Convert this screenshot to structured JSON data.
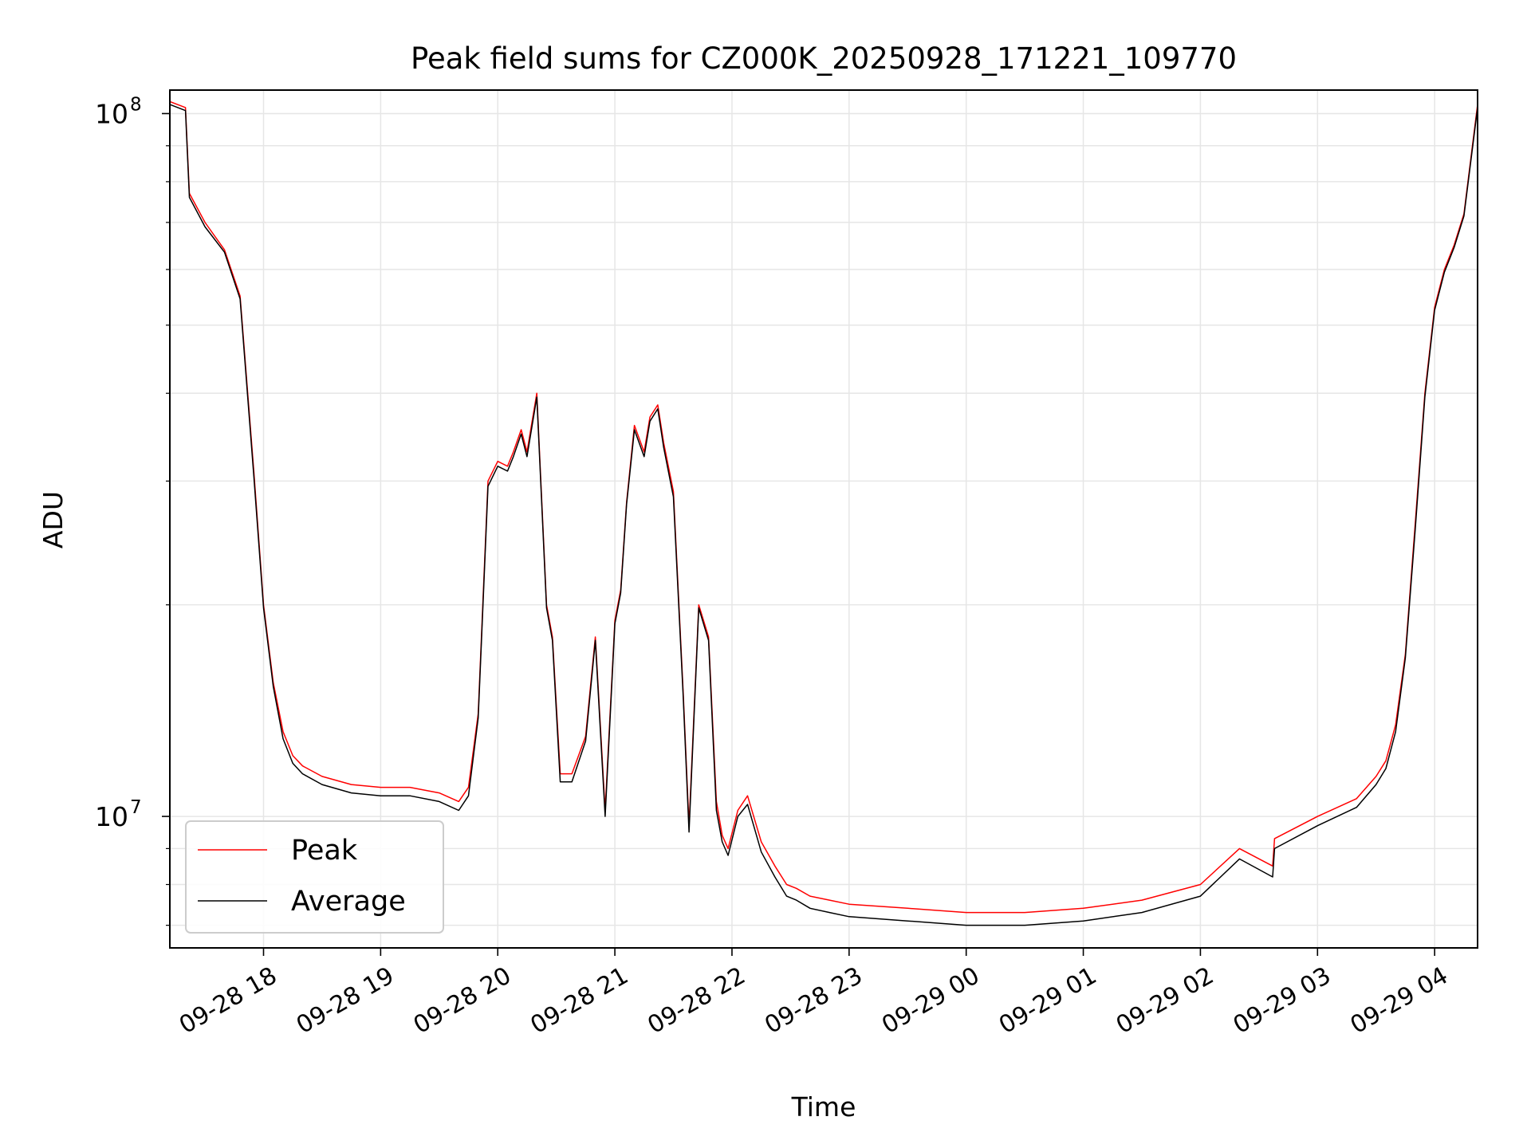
{
  "chart_data": {
    "type": "line",
    "title": "Peak field sums for CZ000K_20250928_171221_109770",
    "xlabel": "Time",
    "ylabel": "ADU",
    "yscale": "log",
    "ylim": [
      6500000,
      108000000
    ],
    "xlim": [
      "09-28 17:12",
      "09-29 04:22"
    ],
    "grid": true,
    "legend": "lower-left",
    "x_ticks": [
      {
        "t": "09-28 18:00",
        "label": "09-28 18"
      },
      {
        "t": "09-28 19:00",
        "label": "09-28 19"
      },
      {
        "t": "09-28 20:00",
        "label": "09-28 20"
      },
      {
        "t": "09-28 21:00",
        "label": "09-28 21"
      },
      {
        "t": "09-28 22:00",
        "label": "09-28 22"
      },
      {
        "t": "09-28 23:00",
        "label": "09-28 23"
      },
      {
        "t": "09-29 00:00",
        "label": "09-29 00"
      },
      {
        "t": "09-29 01:00",
        "label": "09-29 01"
      },
      {
        "t": "09-29 02:00",
        "label": "09-29 02"
      },
      {
        "t": "09-29 03:00",
        "label": "09-29 03"
      },
      {
        "t": "09-29 04:00",
        "label": "09-29 04"
      }
    ],
    "y_ticks": [
      {
        "value": 10000000,
        "base": "10",
        "exp": "7"
      },
      {
        "value": 100000000,
        "base": "10",
        "exp": "8"
      }
    ],
    "x": [
      "09-28 17:12",
      "09-28 17:20",
      "09-28 17:22",
      "09-28 17:30",
      "09-28 17:40",
      "09-28 17:48",
      "09-28 17:55",
      "09-28 18:00",
      "09-28 18:05",
      "09-28 18:10",
      "09-28 18:15",
      "09-28 18:20",
      "09-28 18:30",
      "09-28 18:45",
      "09-28 19:00",
      "09-28 19:15",
      "09-28 19:30",
      "09-28 19:40",
      "09-28 19:45",
      "09-28 19:50",
      "09-28 19:55",
      "09-28 20:00",
      "09-28 20:05",
      "09-28 20:08",
      "09-28 20:12",
      "09-28 20:15",
      "09-28 20:20",
      "09-28 20:25",
      "09-28 20:28",
      "09-28 20:32",
      "09-28 20:38",
      "09-28 20:45",
      "09-28 20:50",
      "09-28 20:55",
      "09-28 21:00",
      "09-28 21:03",
      "09-28 21:06",
      "09-28 21:10",
      "09-28 21:15",
      "09-28 21:18",
      "09-28 21:22",
      "09-28 21:25",
      "09-28 21:30",
      "09-28 21:35",
      "09-28 21:38",
      "09-28 21:43",
      "09-28 21:48",
      "09-28 21:52",
      "09-28 21:55",
      "09-28 21:58",
      "09-28 22:03",
      "09-28 22:08",
      "09-28 22:15",
      "09-28 22:22",
      "09-28 22:28",
      "09-28 22:33",
      "09-28 22:40",
      "09-28 22:50",
      "09-28 23:00",
      "09-28 23:30",
      "09-29 00:00",
      "09-29 00:30",
      "09-29 01:00",
      "09-29 01:30",
      "09-29 02:00",
      "09-29 02:20",
      "09-29 02:37",
      "09-29 02:38",
      "09-29 03:00",
      "09-29 03:20",
      "09-29 03:30",
      "09-29 03:35",
      "09-29 03:40",
      "09-29 03:45",
      "09-29 03:50",
      "09-29 03:55",
      "09-29 04:00",
      "09-29 04:05",
      "09-29 04:10",
      "09-29 04:15",
      "09-29 04:22"
    ],
    "series": [
      {
        "name": "Peak",
        "color": "#ff0000",
        "values": [
          104000000,
          102000000,
          77000000,
          70000000,
          64000000,
          55000000,
          31000000,
          20000000,
          15500000,
          13200000,
          12200000,
          11800000,
          11400000,
          11100000,
          11000000,
          11000000,
          10800000,
          10500000,
          11000000,
          14000000,
          30000000,
          32000000,
          31500000,
          33000000,
          35500000,
          33000000,
          40000000,
          20000000,
          18000000,
          11500000,
          11500000,
          13000000,
          18000000,
          10200000,
          19000000,
          21000000,
          28000000,
          36000000,
          33000000,
          37000000,
          38500000,
          34000000,
          29000000,
          15000000,
          9700000,
          20000000,
          18000000,
          10500000,
          9400000,
          9000000,
          10200000,
          10700000,
          9200000,
          8500000,
          8000000,
          7900000,
          7700000,
          7600000,
          7500000,
          7400000,
          7300000,
          7300000,
          7400000,
          7600000,
          8000000,
          9000000,
          8500000,
          9300000,
          10000000,
          10600000,
          11400000,
          12000000,
          13500000,
          17000000,
          26000000,
          40000000,
          53000000,
          60000000,
          65000000,
          72000000,
          103000000
        ]
      },
      {
        "name": "Average",
        "color": "#000000",
        "values": [
          103000000,
          101000000,
          76000000,
          69000000,
          63500000,
          54500000,
          30500000,
          19800000,
          15300000,
          12900000,
          11900000,
          11500000,
          11100000,
          10800000,
          10700000,
          10700000,
          10500000,
          10200000,
          10700000,
          13800000,
          29500000,
          31500000,
          31000000,
          32500000,
          35000000,
          32500000,
          39500000,
          19800000,
          17800000,
          11200000,
          11200000,
          12800000,
          17800000,
          10000000,
          18800000,
          20800000,
          27800000,
          35500000,
          32500000,
          36500000,
          38000000,
          33500000,
          28500000,
          14800000,
          9500000,
          19800000,
          17800000,
          10200000,
          9200000,
          8800000,
          10000000,
          10400000,
          8900000,
          8200000,
          7700000,
          7600000,
          7400000,
          7300000,
          7200000,
          7100000,
          7000000,
          7000000,
          7100000,
          7300000,
          7700000,
          8700000,
          8200000,
          9000000,
          9700000,
          10300000,
          11100000,
          11700000,
          13200000,
          16800000,
          25500000,
          39500000,
          52500000,
          59500000,
          64500000,
          71500000,
          102000000
        ]
      }
    ]
  }
}
